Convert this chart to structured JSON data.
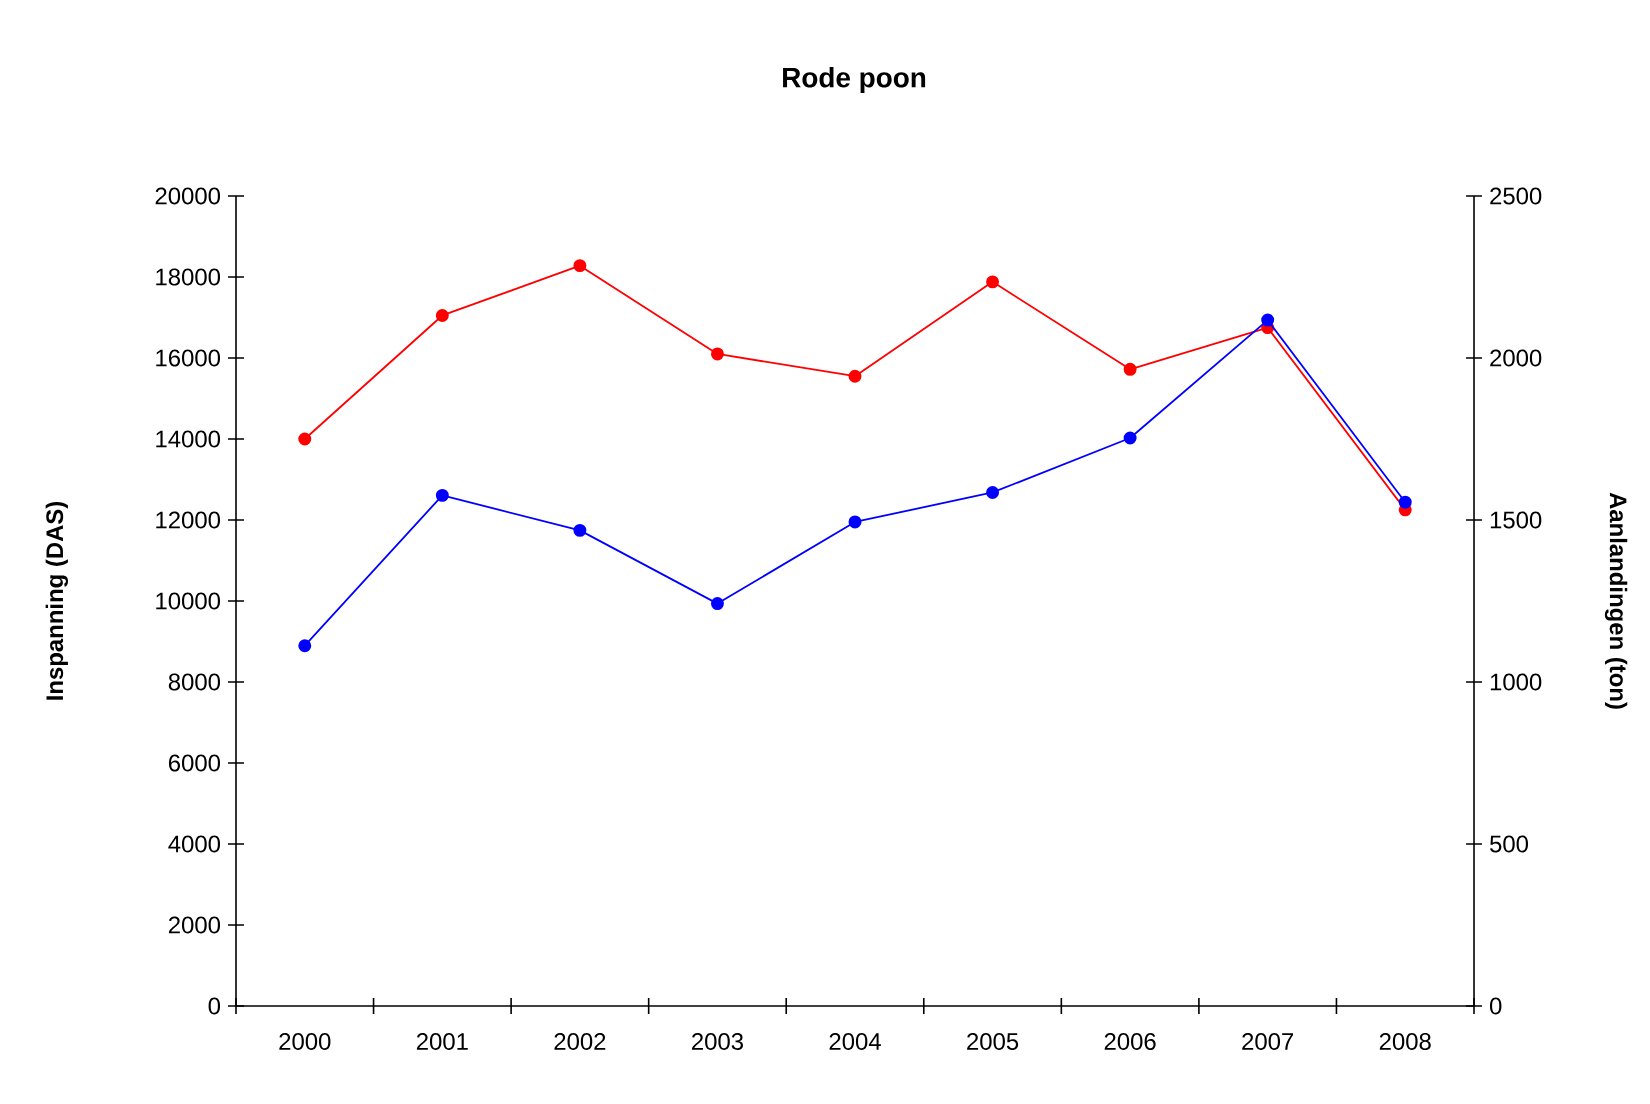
{
  "chart_data": {
    "type": "line",
    "title": "Rode poon",
    "ylabel": "Inspanning (DAS)",
    "y2label": "Aanlandingen (ton)",
    "categories": [
      "2000",
      "2001",
      "2002",
      "2003",
      "2004",
      "2005",
      "2006",
      "2007",
      "2008"
    ],
    "series": [
      {
        "color": "#ff0000",
        "values": [
          14000,
          17050,
          18280,
          16100,
          15550,
          17880,
          15720,
          16750,
          12250
        ]
      },
      {
        "color": "#0000ff",
        "axis": "y2",
        "values": [
          1112,
          1576,
          1468,
          1242,
          1494,
          1585,
          1753,
          2117,
          1555
        ]
      }
    ],
    "ylim": [
      0,
      20000
    ],
    "yticks": [
      0,
      2000,
      4000,
      6000,
      8000,
      10000,
      12000,
      14000,
      16000,
      18000,
      20000
    ],
    "y2lim": [
      0,
      2500
    ],
    "y2ticks": [
      0,
      500,
      1000,
      1500,
      2000,
      2500
    ],
    "marker": "circle",
    "line_style": "solid",
    "grid": false
  }
}
